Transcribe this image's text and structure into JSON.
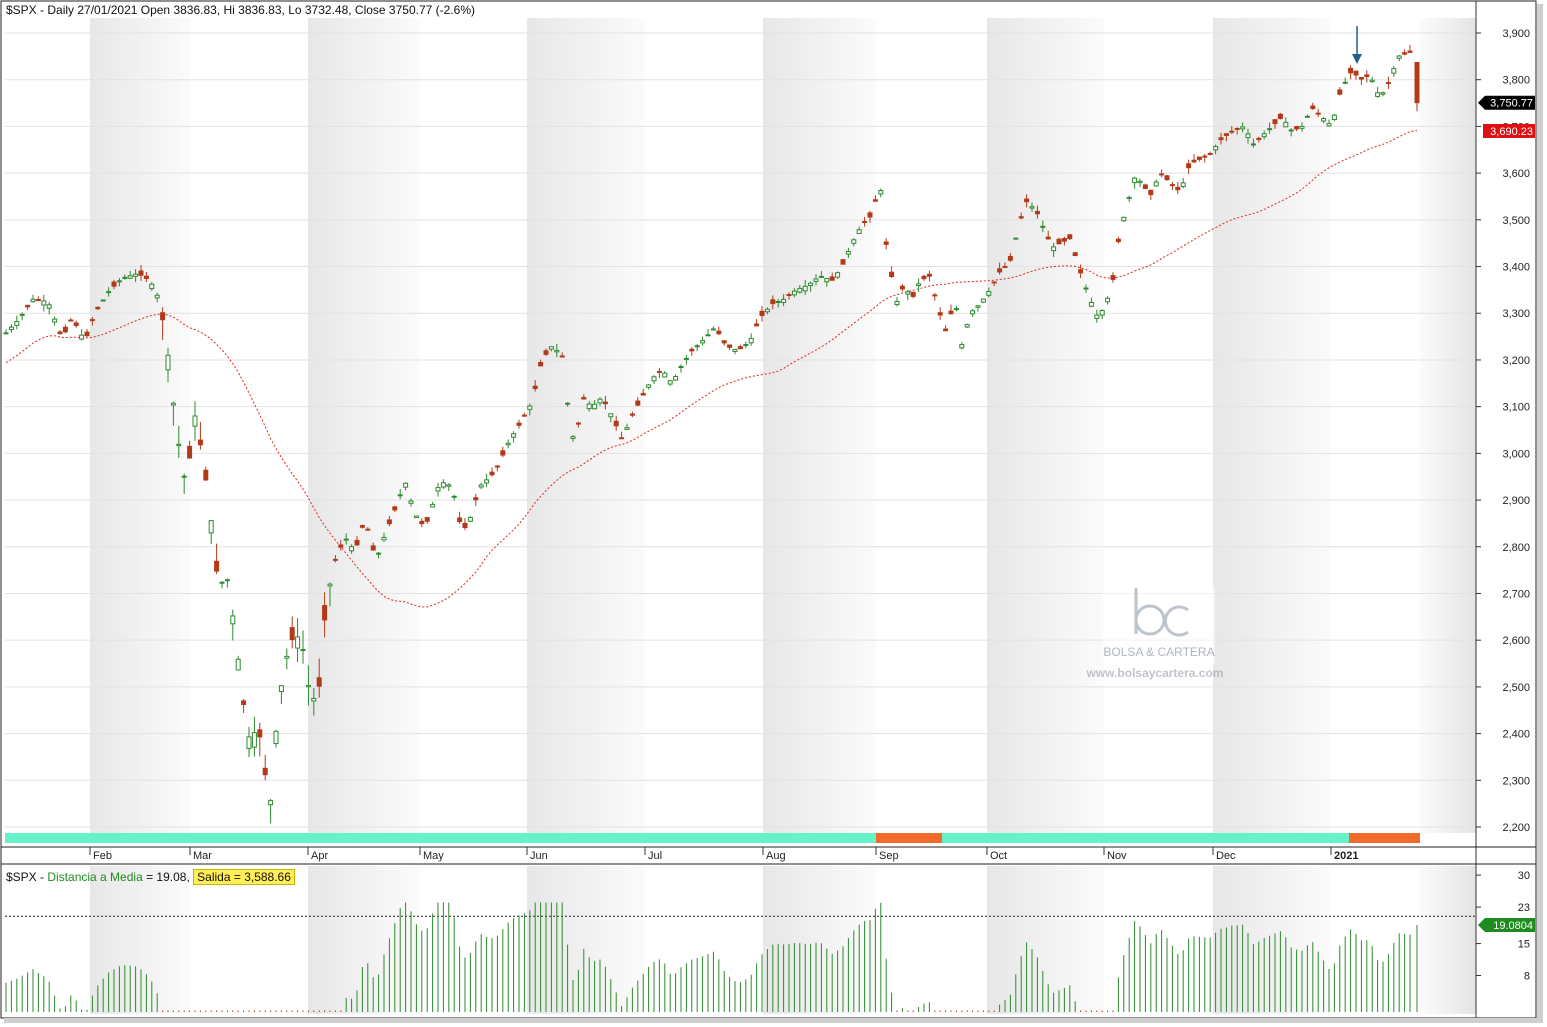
{
  "header": {
    "title": "$SPX - Daily 27/01/2021 Open 3836.83, Hi 3836.83, Lo 3732.48, Close 3750.77 (-2.6%)"
  },
  "subpanel": {
    "symbol": "$SPX",
    "indicator_label": "Distancia a Media",
    "indicator_value": "= 19.08,",
    "salida_label": "Salida = 3,588.66"
  },
  "badges": {
    "close": "3,750.77",
    "ma": "3,690.23",
    "indicator": "19.0804"
  },
  "watermark": {
    "brand": "BOLSA & CARTERA",
    "url": "www.bolsaycartera.com"
  },
  "colors": {
    "up": "#2d8a2d",
    "down": "#b23a18",
    "ma": "#e0261e",
    "signal_on": "#66f2c8",
    "signal_off": "#f26a2a",
    "close_badge": "#000000",
    "ma_badge": "#dd1111",
    "indicator_badge": "#1e8c1e",
    "arrow": "#1f5f8b"
  },
  "chart_data": [
    {
      "type": "candlestick",
      "title": "$SPX - Daily",
      "y_ticks": [
        "3,900",
        "3,800",
        "3,700",
        "3,600",
        "3,500",
        "3,400",
        "3,300",
        "3,200",
        "3,100",
        "3,000",
        "2,900",
        "2,800",
        "2,700",
        "2,600",
        "2,500",
        "2,400",
        "2,300",
        "2,200"
      ],
      "x_ticks": [
        "Feb",
        "Mar",
        "Apr",
        "May",
        "Jun",
        "Jul",
        "Aug",
        "Sep",
        "Oct",
        "Nov",
        "Dec",
        "2021"
      ],
      "ylim": [
        2180,
        3940
      ],
      "ohlc_last": {
        "open": 3836.83,
        "high": 3836.83,
        "low": 3732.48,
        "close": 3750.77
      },
      "key_closes": [
        {
          "date": "2020-01-02",
          "close": 3258
        },
        {
          "date": "2020-02-19",
          "close": 3386
        },
        {
          "date": "2020-03-23",
          "close": 2237
        },
        {
          "date": "2020-04-29",
          "close": 2939
        },
        {
          "date": "2020-06-08",
          "close": 3232
        },
        {
          "date": "2020-06-11",
          "close": 3002
        },
        {
          "date": "2020-07-31",
          "close": 3271
        },
        {
          "date": "2020-09-02",
          "close": 3580
        },
        {
          "date": "2020-09-23",
          "close": 3237
        },
        {
          "date": "2020-10-12",
          "close": 3534
        },
        {
          "date": "2020-10-30",
          "close": 3270
        },
        {
          "date": "2020-11-09",
          "close": 3550
        },
        {
          "date": "2020-12-31",
          "close": 3756
        },
        {
          "date": "2021-01-25",
          "close": 3855
        },
        {
          "date": "2021-01-27",
          "close": 3750.77
        }
      ],
      "series": [
        {
          "name": "MA",
          "last": 3690.23
        }
      ],
      "signal_bar": [
        {
          "from": "2020-01-02",
          "to": "2020-09-03",
          "state": "on"
        },
        {
          "from": "2020-09-04",
          "to": "2020-09-24",
          "state": "off"
        },
        {
          "from": "2020-09-25",
          "to": "2021-01-05",
          "state": "on"
        },
        {
          "from": "2021-01-06",
          "to": "2021-01-27",
          "state": "off"
        }
      ]
    },
    {
      "type": "bar",
      "title": "Distancia a Media",
      "y_ticks": [
        "30",
        "23",
        "15",
        "8"
      ],
      "ylim": [
        0,
        32
      ],
      "reference_line": 21,
      "last": 19.08
    }
  ]
}
